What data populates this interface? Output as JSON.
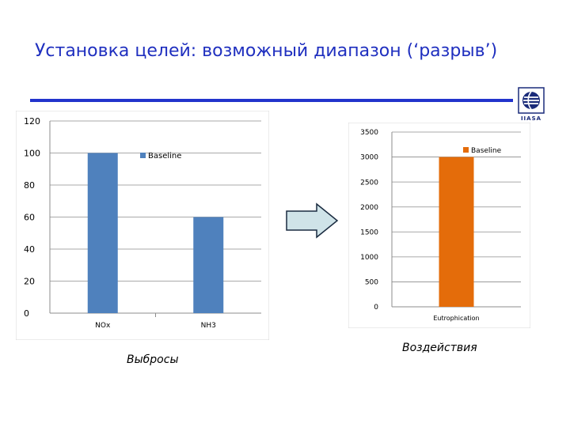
{
  "slide": {
    "title": "Установка целей: возможный диапазон (‘разрыв’)",
    "caption_left": "Выбросы",
    "caption_right": "Воздействия"
  },
  "logo": {
    "icon": "iiasa-logo-icon",
    "text": "IIASA"
  },
  "arrow": {
    "icon": "right-arrow-icon",
    "fill": "#cfe3e8",
    "stroke": "#1a2b40"
  },
  "chart_data": [
    {
      "type": "bar",
      "categories": [
        "NOx",
        "NH3"
      ],
      "series": [
        {
          "name": "Baseline",
          "values": [
            100,
            60
          ],
          "color": "#4f81bd"
        }
      ],
      "ylim": [
        0,
        120
      ],
      "yticks": [
        0,
        20,
        40,
        60,
        80,
        100,
        120
      ],
      "grid": true,
      "legend": "top-center"
    },
    {
      "type": "bar",
      "categories": [
        "Eutrophication"
      ],
      "series": [
        {
          "name": "Baseline",
          "values": [
            3000
          ],
          "color": "#e46c0a"
        }
      ],
      "ylim": [
        0,
        3500
      ],
      "yticks": [
        0,
        500,
        1000,
        1500,
        2000,
        2500,
        3000,
        3500
      ],
      "grid": true,
      "legend": "top-right"
    }
  ]
}
